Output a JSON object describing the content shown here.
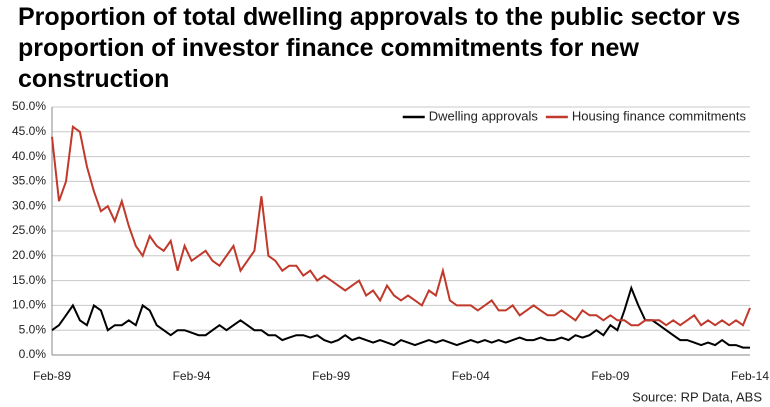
{
  "chart_data": {
    "type": "line",
    "title": "Proportion of total dwelling approvals to the public sector vs proportion of investor finance commitments for new construction",
    "source": "Source: RP Data, ABS",
    "categories": [
      "Feb-89",
      null,
      null,
      null,
      null,
      null,
      null,
      null,
      null,
      null,
      null,
      null,
      null,
      null,
      null,
      null,
      null,
      null,
      null,
      null,
      "Feb-94",
      null,
      null,
      null,
      null,
      null,
      null,
      null,
      null,
      null,
      null,
      null,
      null,
      null,
      null,
      null,
      null,
      null,
      null,
      null,
      "Feb-99",
      null,
      null,
      null,
      null,
      null,
      null,
      null,
      null,
      null,
      null,
      null,
      null,
      null,
      null,
      null,
      null,
      null,
      null,
      null,
      "Feb-04",
      null,
      null,
      null,
      null,
      null,
      null,
      null,
      null,
      null,
      null,
      null,
      null,
      null,
      null,
      null,
      null,
      null,
      null,
      null,
      "Feb-09",
      null,
      null,
      null,
      null,
      null,
      null,
      null,
      null,
      null,
      null,
      null,
      null,
      null,
      null,
      null,
      null,
      null,
      null,
      null,
      "Feb-14"
    ],
    "series": [
      {
        "name": "Dwelling approvals",
        "color": "#000000",
        "values": [
          5,
          6,
          8,
          10,
          7,
          6,
          10,
          9,
          5,
          6,
          6,
          7,
          6,
          10,
          9,
          6,
          5,
          4,
          5,
          5,
          4.5,
          4,
          4,
          5,
          6,
          5,
          6,
          7,
          6,
          5,
          5,
          4,
          4,
          3,
          3.5,
          4,
          4,
          3.5,
          4,
          3,
          2.5,
          3,
          4,
          3,
          3.5,
          3,
          2.5,
          3,
          2.5,
          2,
          3,
          2.5,
          2,
          2.5,
          3,
          2.5,
          3,
          2.5,
          2,
          2.5,
          3,
          2.5,
          3,
          2.5,
          3,
          2.5,
          3,
          3.5,
          3,
          3,
          3.5,
          3,
          3,
          3.5,
          3,
          4,
          3.5,
          4,
          5,
          4,
          6,
          5,
          9,
          13.5,
          10,
          7,
          7,
          6,
          5,
          4,
          3,
          3,
          2.5,
          2,
          2.5,
          2,
          3,
          2,
          2,
          1.5,
          1.5
        ]
      },
      {
        "name": "Housing finance commitments",
        "color": "#c0392b",
        "values": [
          44,
          31,
          35,
          46,
          45,
          38,
          33,
          29,
          30,
          27,
          31,
          26,
          22,
          20,
          24,
          22,
          21,
          23,
          17,
          22,
          19,
          20,
          21,
          19,
          18,
          20,
          22,
          17,
          19,
          21,
          32,
          20,
          19,
          17,
          18,
          18,
          16,
          17,
          15,
          16,
          15,
          14,
          13,
          14,
          15,
          12,
          13,
          11,
          14,
          12,
          11,
          12,
          11,
          10,
          13,
          12,
          17,
          11,
          10,
          10,
          10,
          9,
          10,
          11,
          9,
          9,
          10,
          8,
          9,
          10,
          9,
          8,
          8,
          9,
          8,
          7,
          9,
          8,
          8,
          7,
          8,
          7,
          7,
          6,
          6,
          7,
          7,
          7,
          6,
          7,
          6,
          7,
          8,
          6,
          7,
          6,
          7,
          6,
          7,
          6,
          9.5
        ]
      }
    ],
    "ylim": [
      0,
      50
    ],
    "yticks": [
      {
        "value": 0,
        "label": "0.0%"
      },
      {
        "value": 5,
        "label": "5.0%"
      },
      {
        "value": 10,
        "label": "10.0%"
      },
      {
        "value": 15,
        "label": "15.0%"
      },
      {
        "value": 20,
        "label": "20.0%"
      },
      {
        "value": 25,
        "label": "25.0%"
      },
      {
        "value": 30,
        "label": "30.0%"
      },
      {
        "value": 35,
        "label": "35.0%"
      },
      {
        "value": 40,
        "label": "40.0%"
      },
      {
        "value": 45,
        "label": "45.0%"
      },
      {
        "value": 50,
        "label": "50.0%"
      }
    ],
    "grid": true,
    "legend": "top-right"
  }
}
